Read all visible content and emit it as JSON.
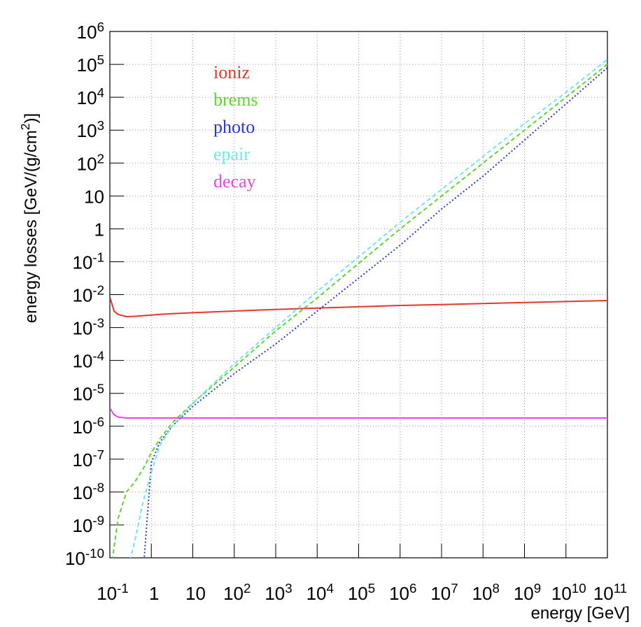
{
  "chart_data": {
    "type": "line",
    "xlabel": "energy [GeV]",
    "ylabel": "energy losses [GeV/(g/cm^2)]",
    "x": [
      0.1,
      0.126,
      0.158,
      0.251,
      0.398,
      0.631,
      1,
      1.58,
      3.16,
      10,
      100,
      1000,
      10000,
      100000,
      1000000,
      10000000,
      100000000,
      1000000000,
      10000000000,
      100000000000
    ],
    "series": [
      {
        "name": "ioniz",
        "color": "#e3392b",
        "style": "solid",
        "values": [
          0.0085,
          0.00316,
          0.0025,
          0.00214,
          0.00219,
          0.00229,
          0.0024,
          0.0025,
          0.00263,
          0.00282,
          0.00316,
          0.00355,
          0.0039,
          0.00427,
          0.00468,
          0.005,
          0.00537,
          0.00575,
          0.00617,
          0.0066
        ]
      },
      {
        "name": "brems",
        "color": "#5fd62e",
        "style": "dashed",
        "values": [
          3.16e-11,
          2e-10,
          1.58e-09,
          1e-08,
          2e-08,
          5e-08,
          1.58e-07,
          3.98e-07,
          1.26e-06,
          5e-06,
          6.3e-05,
          0.00079,
          0.0079,
          0.089,
          1,
          10,
          100,
          1000,
          10000,
          100000
        ]
      },
      {
        "name": "photo",
        "color": "#2a35d8",
        "style": "dotted",
        "values": [
          null,
          null,
          null,
          null,
          null,
          3.16e-11,
          7.9e-08,
          3.16e-07,
          1e-06,
          4e-06,
          4e-05,
          0.000316,
          0.00316,
          0.0316,
          0.316,
          4,
          40,
          500,
          6300,
          79000
        ]
      },
      {
        "name": "epair",
        "color": "#6ee8ee",
        "style": "dashed",
        "values": [
          null,
          null,
          null,
          3.16e-11,
          3.16e-10,
          5e-09,
          4e-08,
          2.5e-07,
          1e-06,
          5e-06,
          7.9e-05,
          0.001,
          0.0126,
          0.141,
          1.58,
          15.8,
          158,
          1580,
          14100,
          141000
        ]
      },
      {
        "name": "decay",
        "color": "#e846e8",
        "style": "solid",
        "values": [
          3.55e-06,
          2.24e-06,
          1.9e-06,
          1.78e-06,
          1.78e-06,
          1.78e-06,
          1.78e-06,
          1.78e-06,
          1.78e-06,
          1.78e-06,
          1.78e-06,
          1.78e-06,
          1.78e-06,
          1.78e-06,
          1.78e-06,
          1.78e-06,
          1.78e-06,
          1.78e-06,
          1.78e-06,
          1.78e-06
        ]
      }
    ],
    "xlog": true,
    "ylog": true,
    "grid": true,
    "xlim": [
      0.1,
      100000000000
    ],
    "ylim": [
      1e-10,
      1000000
    ],
    "xticks": [
      {
        "value": 0.1,
        "label": "10^-1"
      },
      1,
      10,
      {
        "value": 100,
        "label": "10^2"
      },
      {
        "value": 1000,
        "label": "10^3"
      },
      {
        "value": 10000,
        "label": "10^4"
      },
      {
        "value": 100000,
        "label": "10^5"
      },
      {
        "value": 1000000,
        "label": "10^6"
      },
      {
        "value": 10000000,
        "label": "10^7"
      },
      {
        "value": 100000000,
        "label": "10^8"
      },
      {
        "value": 1000000000,
        "label": "10^9"
      },
      {
        "value": 10000000000,
        "label": "10^10"
      },
      {
        "value": 100000000000,
        "label": "10^11"
      }
    ],
    "yticks": [
      {
        "value": 1000000,
        "label": "10^6"
      },
      {
        "value": 100000,
        "label": "10^5"
      },
      {
        "value": 10000,
        "label": "10^4"
      },
      {
        "value": 1000,
        "label": "10^3"
      },
      {
        "value": 100,
        "label": "10^2"
      },
      10,
      1,
      {
        "value": 0.1,
        "label": "10^-1"
      },
      {
        "value": 0.01,
        "label": "10^-2"
      },
      {
        "value": 0.001,
        "label": "10^-3"
      },
      {
        "value": 0.0001,
        "label": "10^-4"
      },
      {
        "value": 1e-05,
        "label": "10^-5"
      },
      {
        "value": 1e-06,
        "label": "10^-6"
      },
      {
        "value": 1e-07,
        "label": "10^-7"
      },
      {
        "value": 1e-08,
        "label": "10^-8"
      },
      {
        "value": 1e-09,
        "label": "10^-9"
      },
      {
        "value": 1e-10,
        "label": "10^-10"
      }
    ]
  }
}
